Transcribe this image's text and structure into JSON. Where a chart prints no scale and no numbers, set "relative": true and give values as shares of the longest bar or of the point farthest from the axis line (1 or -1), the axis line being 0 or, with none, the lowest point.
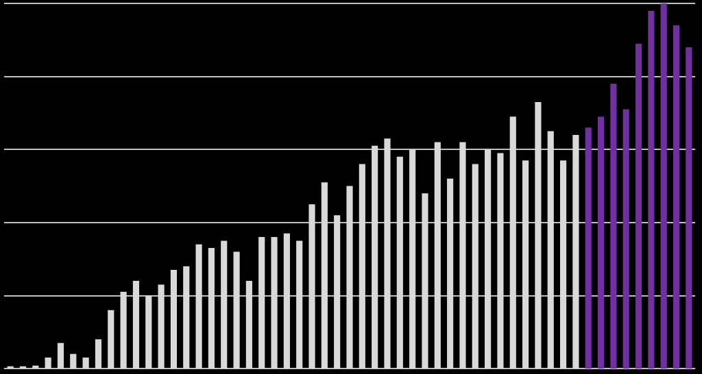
{
  "chart_data": {
    "type": "bar",
    "relative": true,
    "grid": "y",
    "categories": [
      null,
      null,
      null,
      null,
      null,
      null,
      null,
      null,
      null,
      null,
      null,
      null,
      null,
      null,
      null,
      null,
      null,
      null,
      null,
      null,
      null,
      null,
      null,
      null,
      null,
      null,
      null,
      null,
      null,
      null,
      null,
      null,
      null,
      null,
      null,
      null,
      null,
      null,
      null,
      null,
      null,
      null,
      null,
      null,
      null,
      null,
      null,
      null,
      null,
      null,
      null,
      null,
      null,
      null,
      null
    ],
    "values": [
      0.006,
      0.006,
      0.008,
      0.03,
      0.07,
      0.04,
      0.03,
      0.08,
      0.16,
      0.21,
      0.24,
      0.2,
      0.23,
      0.27,
      0.28,
      0.34,
      0.33,
      0.35,
      0.32,
      0.24,
      0.36,
      0.36,
      0.37,
      0.35,
      0.45,
      0.51,
      0.42,
      0.5,
      0.56,
      0.61,
      0.63,
      0.58,
      0.6,
      0.48,
      0.62,
      0.52,
      0.62,
      0.56,
      0.6,
      0.59,
      0.69,
      0.57,
      0.73,
      0.65,
      0.57,
      0.64,
      0.66,
      0.69,
      0.78,
      0.71,
      0.89,
      0.98,
      1,
      0.94,
      0.88
    ],
    "colors": [
      "#d9d9d9",
      "#d9d9d9",
      "#d9d9d9",
      "#d9d9d9",
      "#d9d9d9",
      "#d9d9d9",
      "#d9d9d9",
      "#d9d9d9",
      "#d9d9d9",
      "#d9d9d9",
      "#d9d9d9",
      "#d9d9d9",
      "#d9d9d9",
      "#d9d9d9",
      "#d9d9d9",
      "#d9d9d9",
      "#d9d9d9",
      "#d9d9d9",
      "#d9d9d9",
      "#d9d9d9",
      "#d9d9d9",
      "#d9d9d9",
      "#d9d9d9",
      "#d9d9d9",
      "#d9d9d9",
      "#d9d9d9",
      "#d9d9d9",
      "#d9d9d9",
      "#d9d9d9",
      "#d9d9d9",
      "#d9d9d9",
      "#d9d9d9",
      "#d9d9d9",
      "#d9d9d9",
      "#d9d9d9",
      "#d9d9d9",
      "#d9d9d9",
      "#d9d9d9",
      "#d9d9d9",
      "#d9d9d9",
      "#d9d9d9",
      "#d9d9d9",
      "#d9d9d9",
      "#d9d9d9",
      "#d9d9d9",
      "#d9d9d9",
      "#7030a0",
      "#7030a0",
      "#7030a0",
      "#7030a0",
      "#7030a0",
      "#7030a0",
      "#7030a0",
      "#7030a0",
      "#7030a0"
    ]
  }
}
